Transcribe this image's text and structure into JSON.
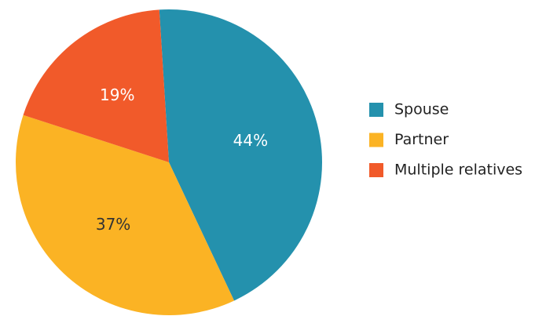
{
  "chart_data": {
    "type": "pie",
    "categories": [
      "Spouse",
      "Partner",
      "Multiple relatives"
    ],
    "values": [
      44,
      37,
      19
    ],
    "value_labels": [
      "44%",
      "37%",
      "19%"
    ],
    "colors": [
      "#2491ad",
      "#fbb324",
      "#f15a2a"
    ],
    "legend": "right"
  }
}
